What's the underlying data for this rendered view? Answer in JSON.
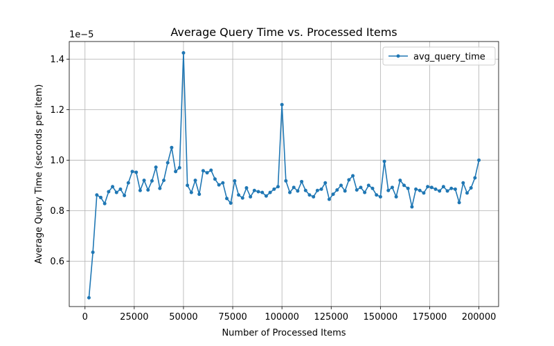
{
  "chart_data": {
    "type": "line",
    "title": "Average Query Time vs. Processed Items",
    "xlabel": "Number of Processed Items",
    "ylabel": "Average Query Time (seconds per item)",
    "y_offset_text": "1e−5",
    "xlim": [
      -8000,
      210000
    ],
    "ylim": [
      4.2e-06,
      1.47e-05
    ],
    "x_ticks": [
      0,
      25000,
      50000,
      75000,
      100000,
      125000,
      150000,
      175000,
      200000
    ],
    "x_tick_labels": [
      "0",
      "25000",
      "50000",
      "75000",
      "100000",
      "125000",
      "150000",
      "175000",
      "200000"
    ],
    "y_ticks": [
      6e-06,
      8e-06,
      1e-05,
      1.2e-05,
      1.4e-05
    ],
    "y_tick_labels": [
      "0.6",
      "0.8",
      "1.0",
      "1.2",
      "1.4"
    ],
    "grid": true,
    "legend_position": "top-right",
    "series": [
      {
        "name": "avg_query_time",
        "color": "#1f77b4",
        "x": [
          2000,
          4000,
          6000,
          8000,
          10000,
          12000,
          14000,
          16000,
          18000,
          20000,
          22000,
          24000,
          26000,
          28000,
          30000,
          32000,
          34000,
          36000,
          38000,
          40000,
          42000,
          44000,
          46000,
          48000,
          50000,
          52000,
          54000,
          56000,
          58000,
          60000,
          62000,
          64000,
          66000,
          68000,
          70000,
          72000,
          74000,
          76000,
          78000,
          80000,
          82000,
          84000,
          86000,
          88000,
          90000,
          92000,
          94000,
          96000,
          98000,
          100000,
          102000,
          104000,
          106000,
          108000,
          110000,
          112000,
          114000,
          116000,
          118000,
          120000,
          122000,
          124000,
          126000,
          128000,
          130000,
          132000,
          134000,
          136000,
          138000,
          140000,
          142000,
          144000,
          146000,
          148000,
          150000,
          152000,
          154000,
          156000,
          158000,
          160000,
          162000,
          164000,
          166000,
          168000,
          170000,
          172000,
          174000,
          176000,
          178000,
          180000,
          182000,
          184000,
          186000,
          188000,
          190000,
          192000,
          194000,
          196000,
          198000,
          200000
        ],
        "y": [
          4.55e-06,
          6.35e-06,
          8.62e-06,
          8.52e-06,
          8.28e-06,
          8.75e-06,
          8.95e-06,
          8.72e-06,
          8.85e-06,
          8.6e-06,
          9.1e-06,
          9.55e-06,
          9.52e-06,
          8.8e-06,
          9.2e-06,
          8.82e-06,
          9.18e-06,
          9.72e-06,
          8.88e-06,
          9.2e-06,
          9.9e-06,
          1.05e-05,
          9.55e-06,
          9.7e-06,
          1.425e-05,
          9e-06,
          8.72e-06,
          9.2e-06,
          8.65e-06,
          9.58e-06,
          9.5e-06,
          9.6e-06,
          9.25e-06,
          9.02e-06,
          9.1e-06,
          8.48e-06,
          8.3e-06,
          9.18e-06,
          8.62e-06,
          8.5e-06,
          8.9e-06,
          8.55e-06,
          8.8e-06,
          8.75e-06,
          8.72e-06,
          8.58e-06,
          8.72e-06,
          8.85e-06,
          8.95e-06,
          1.22e-05,
          9.18e-06,
          8.72e-06,
          8.92e-06,
          8.78e-06,
          9.15e-06,
          8.8e-06,
          8.62e-06,
          8.55e-06,
          8.8e-06,
          8.85e-06,
          9.1e-06,
          8.45e-06,
          8.65e-06,
          8.82e-06,
          9e-06,
          8.78e-06,
          9.22e-06,
          9.38e-06,
          8.82e-06,
          8.92e-06,
          8.72e-06,
          9e-06,
          8.88e-06,
          8.62e-06,
          8.55e-06,
          9.95e-06,
          8.8e-06,
          8.92e-06,
          8.55e-06,
          9.2e-06,
          9e-06,
          8.88e-06,
          8.15e-06,
          8.85e-06,
          8.8e-06,
          8.7e-06,
          8.95e-06,
          8.92e-06,
          8.85e-06,
          8.78e-06,
          8.95e-06,
          8.78e-06,
          8.88e-06,
          8.85e-06,
          8.32e-06,
          9.1e-06,
          8.7e-06,
          8.9e-06,
          9.3e-06,
          1e-05
        ]
      }
    ]
  }
}
